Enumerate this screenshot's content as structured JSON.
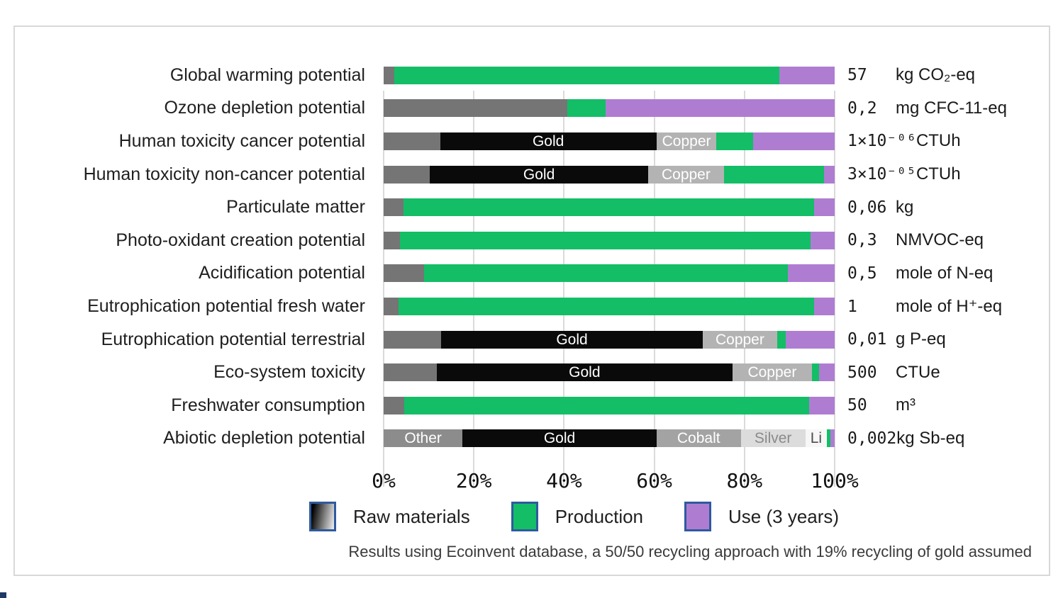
{
  "footnote": "Results using Ecoinvent database, a 50/50 recycling approach with 19% recycling of gold assumed",
  "chart_data": {
    "type": "bar",
    "orientation": "horizontal",
    "stacked": true,
    "x_unit": "percent",
    "xlim": [
      0,
      100
    ],
    "grid": "vertical",
    "legend_position": "bottom",
    "colors": {
      "production": "#13be66",
      "use": "#ae7dd2",
      "raw_default": "#757575",
      "grid": "#dadada",
      "legend_border": "#2e5a9e",
      "corner_accent": "#1f3864"
    },
    "x_ticks": [
      {
        "label": "0%",
        "pct": 0
      },
      {
        "label": "20%",
        "pct": 20
      },
      {
        "label": "40%",
        "pct": 40
      },
      {
        "label": "60%",
        "pct": 60
      },
      {
        "label": "80%",
        "pct": 80
      },
      {
        "label": "100%",
        "pct": 100
      }
    ],
    "legend": [
      {
        "label": "Raw materials",
        "swatch": "gradient"
      },
      {
        "label": "Production",
        "swatch": "solid",
        "color": "#13be66"
      },
      {
        "label": "Use (3 years)",
        "swatch": "solid",
        "color": "#ae7dd2"
      }
    ],
    "rows": [
      {
        "category": "Global warming potential",
        "value": "57",
        "unit": "kg CO₂-eq",
        "segments": [
          {
            "phase": "raw",
            "label": "",
            "pct": 2.4,
            "color": "#757575"
          },
          {
            "phase": "production",
            "label": "",
            "pct": 85.4
          },
          {
            "phase": "use",
            "label": "",
            "pct": 12.2
          }
        ]
      },
      {
        "category": "Ozone depletion potential",
        "value": "0,2",
        "unit": "mg CFC-11-eq",
        "segments": [
          {
            "phase": "raw",
            "label": "",
            "pct": 40.8,
            "color": "#757575"
          },
          {
            "phase": "production",
            "label": "",
            "pct": 8.4
          },
          {
            "phase": "use",
            "label": "",
            "pct": 50.8
          }
        ]
      },
      {
        "category": "Human toxicity cancer potential",
        "value": "1×10⁻⁰⁶",
        "unit": "CTUh",
        "segments": [
          {
            "phase": "raw",
            "label": "",
            "pct": 12.5,
            "color": "#757575"
          },
          {
            "phase": "raw",
            "label": "Gold",
            "pct": 48.0,
            "color": "#0a0a0a",
            "label_color": "#ffffff"
          },
          {
            "phase": "raw",
            "label": "Copper",
            "pct": 13.3,
            "color": "#b3b3b3",
            "label_color": "#ffffff"
          },
          {
            "phase": "production",
            "label": "",
            "pct": 8.2
          },
          {
            "phase": "use",
            "label": "",
            "pct": 18.0
          }
        ]
      },
      {
        "category": "Human toxicity non-cancer potential",
        "value": "3×10⁻⁰⁵",
        "unit": "CTUh",
        "segments": [
          {
            "phase": "raw",
            "label": "",
            "pct": 10.2,
            "color": "#757575"
          },
          {
            "phase": "raw",
            "label": "Gold",
            "pct": 48.5,
            "color": "#0a0a0a",
            "label_color": "#ffffff"
          },
          {
            "phase": "raw",
            "label": "Copper",
            "pct": 16.7,
            "color": "#b3b3b3",
            "label_color": "#ffffff"
          },
          {
            "phase": "production",
            "label": "",
            "pct": 22.2
          },
          {
            "phase": "use",
            "label": "",
            "pct": 2.4
          }
        ]
      },
      {
        "category": "Particulate matter",
        "value": "0,06",
        "unit": "kg",
        "segments": [
          {
            "phase": "raw",
            "label": "",
            "pct": 4.4,
            "color": "#757575"
          },
          {
            "phase": "production",
            "label": "",
            "pct": 91.0
          },
          {
            "phase": "use",
            "label": "",
            "pct": 4.6
          }
        ]
      },
      {
        "category": "Photo-oxidant creation potential",
        "value": "0,3",
        "unit": "NMVOC-eq",
        "segments": [
          {
            "phase": "raw",
            "label": "",
            "pct": 3.6,
            "color": "#757575"
          },
          {
            "phase": "production",
            "label": "",
            "pct": 91.1
          },
          {
            "phase": "use",
            "label": "",
            "pct": 5.3
          }
        ]
      },
      {
        "category": "Acidification potential",
        "value": "0,5",
        "unit": "mole of N-eq",
        "segments": [
          {
            "phase": "raw",
            "label": "",
            "pct": 9.0,
            "color": "#757575"
          },
          {
            "phase": "production",
            "label": "",
            "pct": 80.7
          },
          {
            "phase": "use",
            "label": "",
            "pct": 10.3
          }
        ]
      },
      {
        "category": "Eutrophication potential fresh water",
        "value": "1",
        "unit": "mole of H⁺-eq",
        "segments": [
          {
            "phase": "raw",
            "label": "",
            "pct": 3.3,
            "color": "#757575"
          },
          {
            "phase": "production",
            "label": "",
            "pct": 92.1
          },
          {
            "phase": "use",
            "label": "",
            "pct": 4.6
          }
        ]
      },
      {
        "category": "Eutrophication potential terrestrial",
        "value": "0,01",
        "unit": "g P-eq",
        "segments": [
          {
            "phase": "raw",
            "label": "",
            "pct": 12.8,
            "color": "#757575"
          },
          {
            "phase": "raw",
            "label": "Gold",
            "pct": 57.9,
            "color": "#0a0a0a",
            "label_color": "#ffffff"
          },
          {
            "phase": "raw",
            "label": "Copper",
            "pct": 16.6,
            "color": "#b3b3b3",
            "label_color": "#ffffff"
          },
          {
            "phase": "production",
            "label": "",
            "pct": 1.8
          },
          {
            "phase": "use",
            "label": "",
            "pct": 10.9
          }
        ]
      },
      {
        "category": "Eco-system toxicity",
        "value": "500",
        "unit": "CTUe",
        "segments": [
          {
            "phase": "raw",
            "label": "",
            "pct": 11.8,
            "color": "#757575"
          },
          {
            "phase": "raw",
            "label": "Gold",
            "pct": 65.5,
            "color": "#0a0a0a",
            "label_color": "#ffffff"
          },
          {
            "phase": "raw",
            "label": "Copper",
            "pct": 17.7,
            "color": "#b3b3b3",
            "label_color": "#ffffff"
          },
          {
            "phase": "production",
            "label": "",
            "pct": 1.6
          },
          {
            "phase": "use",
            "label": "",
            "pct": 3.4
          }
        ]
      },
      {
        "category": "Freshwater consumption",
        "value": "50",
        "unit": "m³",
        "segments": [
          {
            "phase": "raw",
            "label": "",
            "pct": 4.5,
            "color": "#757575"
          },
          {
            "phase": "production",
            "label": "",
            "pct": 89.9
          },
          {
            "phase": "use",
            "label": "",
            "pct": 5.6
          }
        ]
      },
      {
        "category": "Abiotic depletion potential",
        "value": "0,002",
        "unit": "kg Sb-eq",
        "segments": [
          {
            "phase": "raw",
            "label": "Other",
            "pct": 17.5,
            "color": "#8c8c8c",
            "label_color": "#ffffff"
          },
          {
            "phase": "raw",
            "label": "Gold",
            "pct": 43.0,
            "color": "#0a0a0a",
            "label_color": "#ffffff"
          },
          {
            "phase": "raw",
            "label": "Cobalt",
            "pct": 18.7,
            "color": "#a3a3a3",
            "label_color": "#ffffff"
          },
          {
            "phase": "raw",
            "label": "Silver",
            "pct": 14.3,
            "color": "#dcdcdc",
            "label_color": "#8a8a8a"
          },
          {
            "phase": "raw",
            "label": "Li",
            "pct": 4.8,
            "color": "#f7f7f7",
            "label_color": "#4d4d4d"
          },
          {
            "phase": "production",
            "label": "",
            "pct": 0.7
          },
          {
            "phase": "use",
            "label": "",
            "pct": 1.0
          }
        ]
      }
    ]
  }
}
